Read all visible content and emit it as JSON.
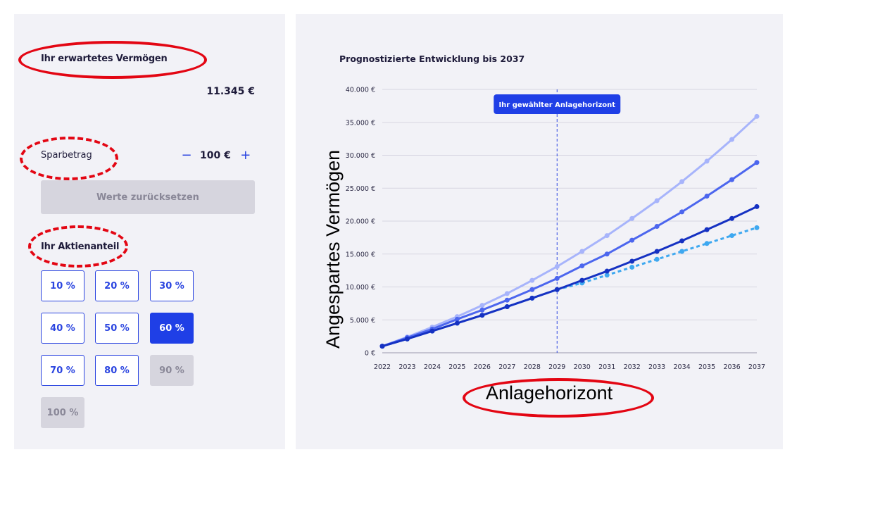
{
  "left": {
    "wealth_title": "Ihr erwartetes Vermögen",
    "wealth_value": "11.345 €",
    "savings_label": "Sparbetrag",
    "savings_minus": "−",
    "savings_value": "100 €",
    "savings_plus": "+",
    "reset_label": "Werte zurücksetzen",
    "stock_title": "Ihr Aktienanteil",
    "percent_options": [
      "10 %",
      "20 %",
      "30 %",
      "40 %",
      "50 %",
      "60 %",
      "70 %",
      "80 %",
      "90 %",
      "100 %"
    ],
    "selected_percent": "60 %",
    "disabled_percents": [
      "90 %",
      "100 %"
    ]
  },
  "annotations": {
    "y_axis_label": "Angespartes Vermögen",
    "x_axis_label": "Anlagehorizont",
    "oval_color": "#e30613"
  },
  "chart_data": {
    "type": "line",
    "title": "Prognostizierte Entwicklung bis 2037",
    "xlabel": "Anlagehorizont",
    "ylabel": "Angespartes Vermögen",
    "x": [
      "2022",
      "2023",
      "2024",
      "2025",
      "2026",
      "2027",
      "2028",
      "2029",
      "2030",
      "2031",
      "2032",
      "2033",
      "2034",
      "2035",
      "2036",
      "2037"
    ],
    "ylim": [
      0,
      40000
    ],
    "yticks": [
      "0 €",
      "5.000 €",
      "10.000 €",
      "15.000 €",
      "20.000 €",
      "25.000 €",
      "30.000 €",
      "35.000 €",
      "40.000 €"
    ],
    "marker": {
      "label": "Ihr gewählter Anlagehorizont",
      "x": "2029"
    },
    "grid": true,
    "series": [
      {
        "color": "#a7b4fb",
        "style": "solid",
        "values": [
          1000,
          2400,
          3900,
          5500,
          7200,
          9000,
          11000,
          13100,
          15400,
          17800,
          20400,
          23100,
          26000,
          29100,
          32400,
          35900
        ]
      },
      {
        "color": "#4c66ee",
        "style": "solid",
        "values": [
          1000,
          2300,
          3600,
          5100,
          6500,
          8000,
          9600,
          11300,
          13200,
          15000,
          17100,
          19200,
          21400,
          23800,
          26300,
          28900
        ]
      },
      {
        "color": "#1531c2",
        "style": "solid",
        "values": [
          1000,
          2100,
          3300,
          4500,
          5700,
          7000,
          8300,
          9600,
          11000,
          12400,
          13900,
          15400,
          17000,
          18700,
          20400,
          22200
        ]
      },
      {
        "color": "#3ea8f0",
        "style": "dashed",
        "values": [
          1000,
          2100,
          3300,
          4500,
          5700,
          7000,
          8300,
          9600,
          10600,
          11800,
          13000,
          14200,
          15400,
          16600,
          17800,
          19000
        ]
      }
    ]
  }
}
